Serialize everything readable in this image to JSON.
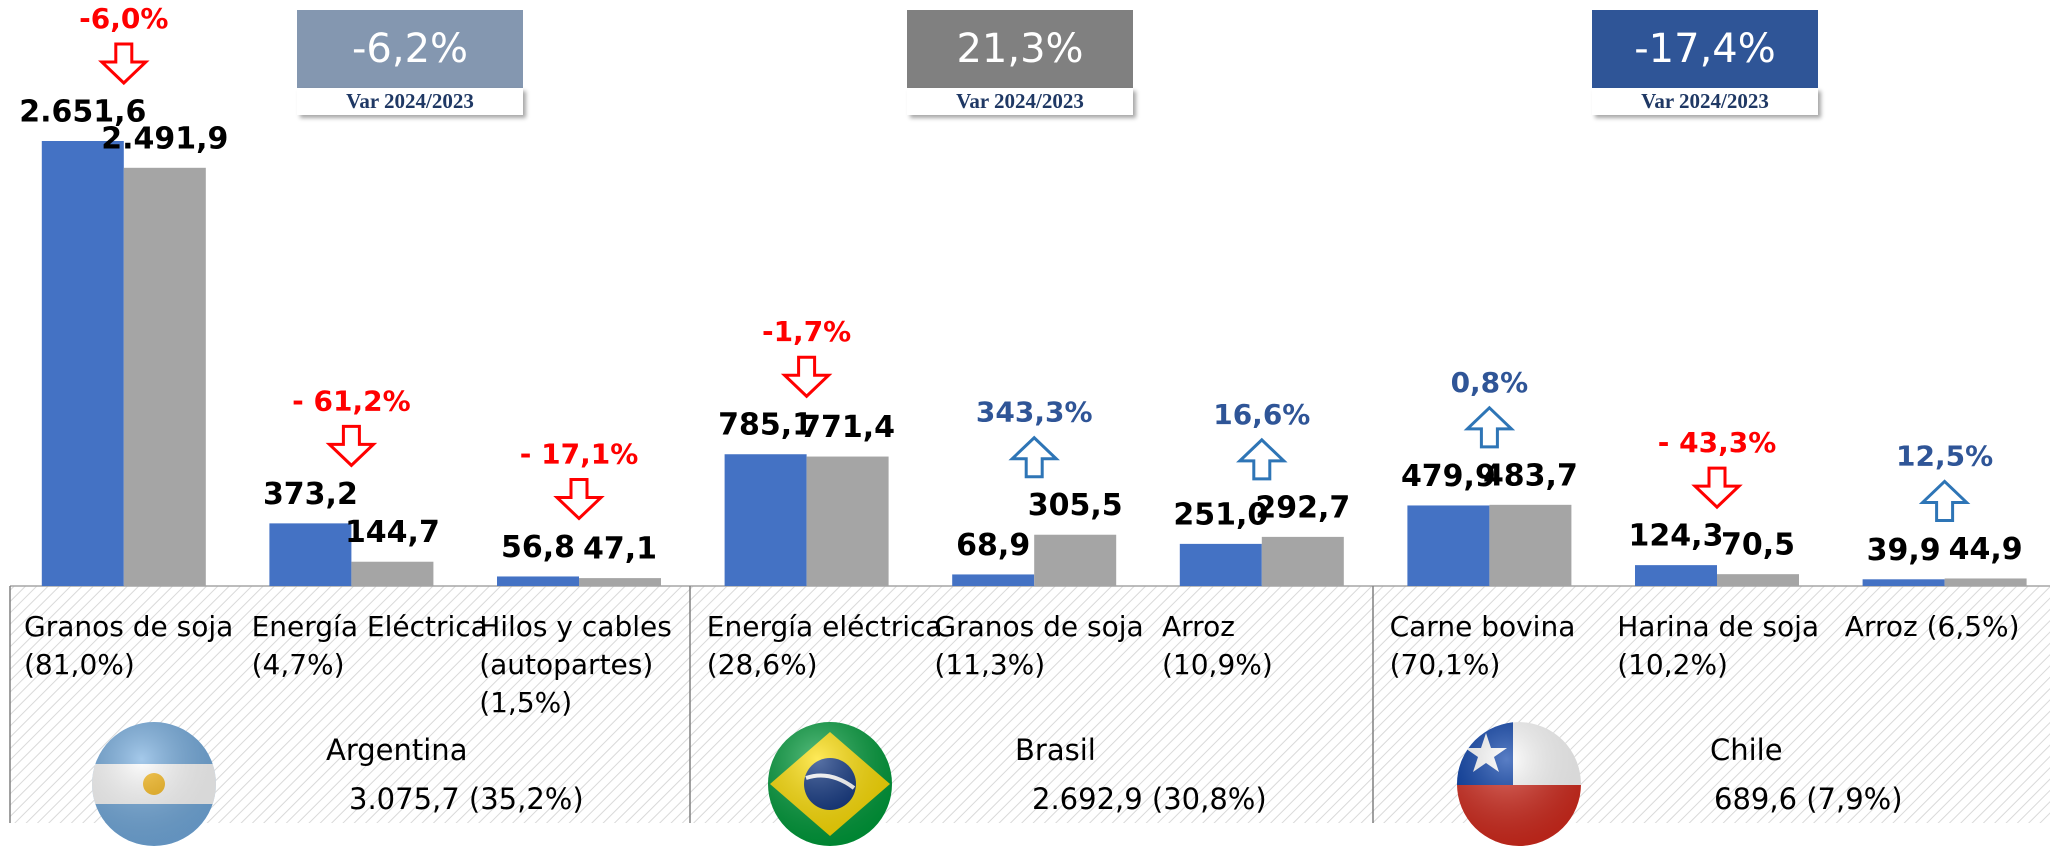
{
  "chart_data": {
    "type": "bar",
    "groups": [
      {
        "name": "Argentina",
        "total": "3.075,7 (35,2%)",
        "change_label": "-6,2%",
        "caption": "Var 2024/2023",
        "color": "#8497b0",
        "categories": [
          "Granos de soja\n(81,0%)",
          "Energía Eléctrica\n(4,7%)",
          "Hilos y cables\n(autopartes)\n(1,5%)"
        ]
      },
      {
        "name": "Brasil",
        "total": "2.692,9 (30,8%)",
        "change_label": "21,3%",
        "caption": "Var 2024/2023",
        "color": "#808080",
        "categories": [
          "Energía eléctrica\n(28,6%)",
          "Granos de soja\n(11,3%)",
          "Arroz\n(10,9%)"
        ]
      },
      {
        "name": "Chile",
        "total": "689,6 (7,9%)",
        "change_label": "-17,4%",
        "caption": "Var 2024/2023",
        "color": "#2f5597",
        "categories": [
          "Carne bovina\n(70,1%)",
          "Harina de soja\n(10,2%)",
          "Arroz (6,5%)"
        ]
      }
    ],
    "series": [
      {
        "color": "#4472c4",
        "values": [
          2651.6,
          373.2,
          56.8,
          785.1,
          68.9,
          251.0,
          479.9,
          124.3,
          39.9
        ],
        "value_labels": [
          "2.651,6",
          "373,2",
          "56,8",
          "785,1",
          "68,9",
          "251,0",
          "479,9",
          "124,3",
          "39,9"
        ]
      },
      {
        "color": "#a5a5a5",
        "values": [
          2491.9,
          144.7,
          47.1,
          771.4,
          305.5,
          292.7,
          483.7,
          70.5,
          44.9
        ],
        "value_labels": [
          "2.491,9",
          "144,7",
          "47,1",
          "771,4",
          "305,5",
          "292,7",
          "483,7",
          "70,5",
          "44,9"
        ]
      }
    ],
    "changes": [
      -6.0,
      -61.2,
      -17.1,
      -1.7,
      343.3,
      16.6,
      0.8,
      -43.3,
      12.5
    ],
    "change_labels": [
      "-6,0%",
      "- 61,2%",
      "- 17,1%",
      "-1,7%",
      "343,3%",
      "16,6%",
      "0,8%",
      "- 43,3%",
      "12,5%"
    ],
    "down_color": "#ff0000",
    "up_color": "#2e75b6",
    "up_text_color": "#2f5597"
  }
}
